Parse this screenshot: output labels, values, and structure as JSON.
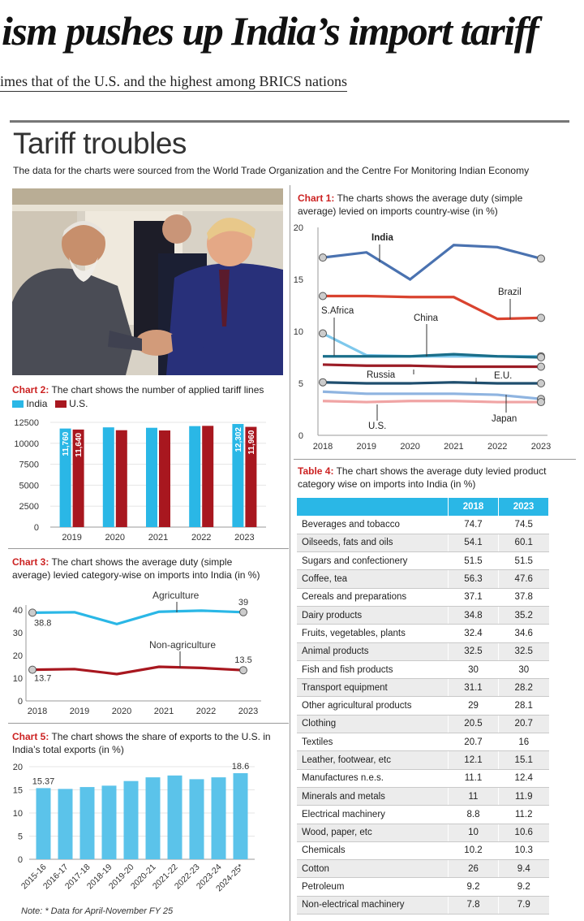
{
  "headline": "ism pushes up India’s import tariff",
  "subheadline": "imes that of the U.S. and the highest among BRICS nations",
  "section_title": "Tariff troubles",
  "source_note": "The data for the charts were sourced from the World Trade Organization and the Centre For Monitoring Indian Economy",
  "note": "Note: * Data for April-November FY 25",
  "colors": {
    "india": "#2ab7e6",
    "us": "#a8171f",
    "line_blue": "#4a72b0",
    "line_red": "#d9432f"
  },
  "chart_data": [
    {
      "id": "chart1",
      "type": "line",
      "caption_label": "Chart 1:",
      "caption_text": "The charts shows the average duty (simple average) levied on imports country-wise (in %)",
      "x": [
        "2018",
        "2019",
        "2020",
        "2021",
        "2022",
        "2023"
      ],
      "ylim": [
        0,
        20
      ],
      "yticks": [
        "0",
        "5",
        "10",
        "15",
        "20"
      ],
      "series": [
        {
          "name": "India",
          "color": "#4a72b0",
          "values": [
            17.1,
            17.6,
            15.0,
            18.3,
            18.1,
            17.0
          ]
        },
        {
          "name": "Brazil",
          "color": "#d9432f",
          "values": [
            13.4,
            13.4,
            13.3,
            13.3,
            11.2,
            11.3
          ]
        },
        {
          "name": "S.Africa",
          "color": "#7ec8ec",
          "values": [
            9.8,
            7.7,
            7.6,
            7.6,
            7.6,
            7.6
          ]
        },
        {
          "name": "China",
          "color": "#1a6e8a",
          "values": [
            7.6,
            7.6,
            7.6,
            7.8,
            7.6,
            7.5
          ]
        },
        {
          "name": "Russia",
          "color": "#9b1c26",
          "values": [
            6.8,
            6.7,
            6.7,
            6.6,
            6.6,
            6.6
          ]
        },
        {
          "name": "E.U.",
          "color": "#1f4e6e",
          "values": [
            5.1,
            5.0,
            5.0,
            5.1,
            5.0,
            5.0
          ]
        },
        {
          "name": "U.S.",
          "color": "#8fb4e0",
          "values": [
            4.2,
            4.0,
            4.0,
            4.0,
            3.9,
            3.5
          ]
        },
        {
          "name": "Japan",
          "color": "#f0a4a4",
          "values": [
            3.3,
            3.2,
            3.3,
            3.3,
            3.2,
            3.2
          ]
        }
      ]
    },
    {
      "id": "chart2",
      "type": "bar",
      "caption_label": "Chart 2:",
      "caption_text": "The chart shows the number of applied tariff lines",
      "categories": [
        "2019",
        "2020",
        "2021",
        "2022",
        "2023"
      ],
      "ylim": [
        0,
        12500
      ],
      "yticks": [
        "0",
        "2500",
        "5000",
        "7500",
        "10000",
        "12500"
      ],
      "series": [
        {
          "name": "India",
          "values": [
            11760,
            11900,
            11850,
            12050,
            12302
          ]
        },
        {
          "name": "U.S.",
          "values": [
            11640,
            11560,
            11530,
            12080,
            11960
          ]
        }
      ],
      "data_labels": {
        "first_india": "11,760",
        "first_us": "11,640",
        "last_india": "12,302",
        "last_us": "11,960"
      }
    },
    {
      "id": "chart3",
      "type": "line",
      "caption_label": "Chart 3:",
      "caption_text": "The chart shows the average duty (simple average) levied category-wise on imports into India (in %)",
      "x": [
        "2018",
        "2019",
        "2020",
        "2021",
        "2022",
        "2023"
      ],
      "ylim": [
        0,
        40
      ],
      "yticks": [
        "0",
        "10",
        "20",
        "30",
        "40"
      ],
      "series": [
        {
          "name": "Agriculture",
          "values": [
            38.8,
            39.0,
            33.8,
            39.2,
            39.7,
            39.0
          ],
          "start_label": "38.8",
          "end_label": "39"
        },
        {
          "name": "Non-agriculture",
          "values": [
            13.7,
            14.0,
            11.8,
            15.0,
            14.5,
            13.5
          ],
          "start_label": "13.7",
          "end_label": "13.5"
        }
      ]
    },
    {
      "id": "chart5",
      "type": "bar",
      "caption_label": "Chart 5:",
      "caption_text": "The chart shows the share of exports to the U.S. in India’s total exports (in %)",
      "categories": [
        "2015-16",
        "2016-17",
        "2017-18",
        "2018-19",
        "2019-20",
        "2020-21",
        "2021-22",
        "2022-23",
        "2023-24",
        "2024-25*"
      ],
      "values": [
        15.37,
        15.2,
        15.6,
        15.9,
        16.9,
        17.7,
        18.1,
        17.3,
        17.7,
        18.6
      ],
      "ylim": [
        0,
        20
      ],
      "yticks": [
        "0",
        "5",
        "10",
        "15",
        "20"
      ],
      "labels": {
        "first": "15.37",
        "last": "18.6"
      }
    },
    {
      "id": "table4",
      "type": "table",
      "caption_label": "Table 4:",
      "caption_text": "The chart shows the average duty levied product category wise on imports into India (in %)",
      "columns": [
        "",
        "2018",
        "2023"
      ],
      "rows": [
        [
          "Beverages and tobacco",
          "74.7",
          "74.5"
        ],
        [
          "Oilseeds, fats and oils",
          "54.1",
          "60.1"
        ],
        [
          "Sugars and confectionery",
          "51.5",
          "51.5"
        ],
        [
          "Coffee, tea",
          "56.3",
          "47.6"
        ],
        [
          "Cereals and preparations",
          "37.1",
          "37.8"
        ],
        [
          "Dairy products",
          "34.8",
          "35.2"
        ],
        [
          "Fruits, vegetables, plants",
          "32.4",
          "34.6"
        ],
        [
          "Animal products",
          "32.5",
          "32.5"
        ],
        [
          "Fish and fish products",
          "30",
          "30"
        ],
        [
          "Transport equipment",
          "31.1",
          "28.2"
        ],
        [
          "Other agricultural products",
          "29",
          "28.1"
        ],
        [
          "Clothing",
          "20.5",
          "20.7"
        ],
        [
          "Textiles",
          "20.7",
          "16"
        ],
        [
          "Leather, footwear, etc",
          "12.1",
          "15.1"
        ],
        [
          "Manufactures n.e.s.",
          "11.1",
          "12.4"
        ],
        [
          "Minerals and metals",
          "11",
          "11.9"
        ],
        [
          "Electrical machinery",
          "8.8",
          "11.2"
        ],
        [
          "Wood, paper, etc",
          "10",
          "10.6"
        ],
        [
          "Chemicals",
          "10.2",
          "10.3"
        ],
        [
          "Cotton",
          "26",
          "9.4"
        ],
        [
          "Petroleum",
          "9.2",
          "9.2"
        ],
        [
          "Non-electrical machinery",
          "7.8",
          "7.9"
        ]
      ]
    }
  ]
}
